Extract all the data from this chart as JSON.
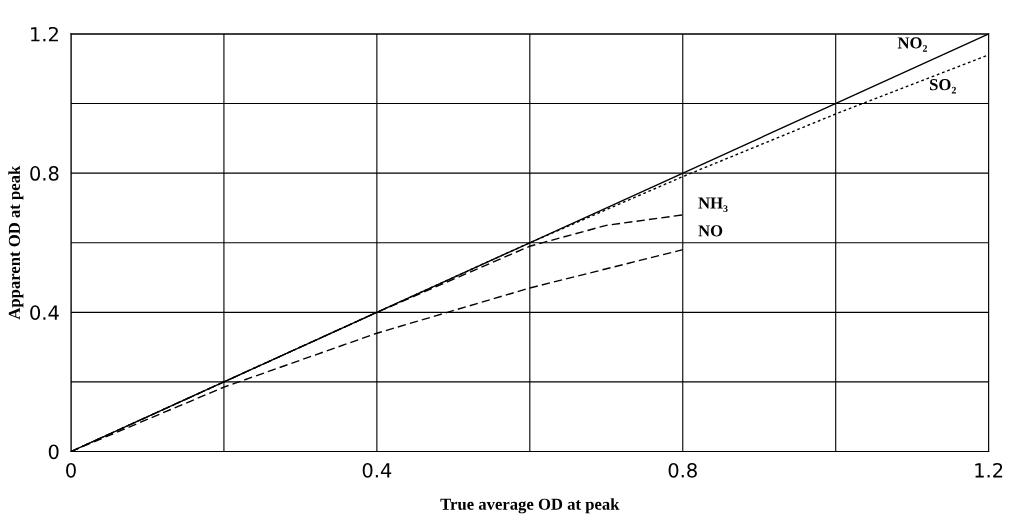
{
  "chart_data": {
    "type": "line",
    "xlabel": "True average OD at peak",
    "ylabel": "Apparent OD at peak",
    "xlim": [
      0,
      1.2
    ],
    "ylim": [
      0,
      1.2
    ],
    "xticks": [
      0,
      {
        "value": 0.2,
        "label": null
      },
      0.4,
      {
        "value": 0.6,
        "label": null
      },
      0.8,
      {
        "value": 1.0,
        "label": null
      },
      1.2
    ],
    "yticks": [
      0,
      {
        "value": 0.2,
        "label": null
      },
      0.4,
      {
        "value": 0.6,
        "label": null
      },
      0.8,
      {
        "value": 1.0,
        "label": null
      },
      1.2
    ],
    "grid": true,
    "legend": false,
    "marker": "none",
    "series": [
      {
        "name": "NO₂",
        "color": "#000000",
        "line_style": "solid",
        "x": [
          0,
          1.2
        ],
        "values": [
          0,
          1.2
        ]
      },
      {
        "name": "SO₂",
        "color": "#000000",
        "line_style": "dotted",
        "x": [
          0,
          0.2,
          0.4,
          0.6,
          0.8,
          1.0,
          1.2
        ],
        "values": [
          0,
          0.2,
          0.4,
          0.6,
          0.79,
          0.97,
          1.14
        ]
      },
      {
        "name": "NH₃",
        "color": "#000000",
        "line_style": "dashed",
        "x": [
          0,
          0.2,
          0.4,
          0.6,
          0.7,
          0.8
        ],
        "values": [
          0,
          0.2,
          0.4,
          0.59,
          0.65,
          0.68
        ]
      },
      {
        "name": "NO",
        "color": "#000000",
        "line_style": "dashed",
        "x": [
          0,
          0.2,
          0.4,
          0.6,
          0.8
        ],
        "values": [
          0,
          0.185,
          0.34,
          0.47,
          0.58
        ]
      }
    ]
  }
}
